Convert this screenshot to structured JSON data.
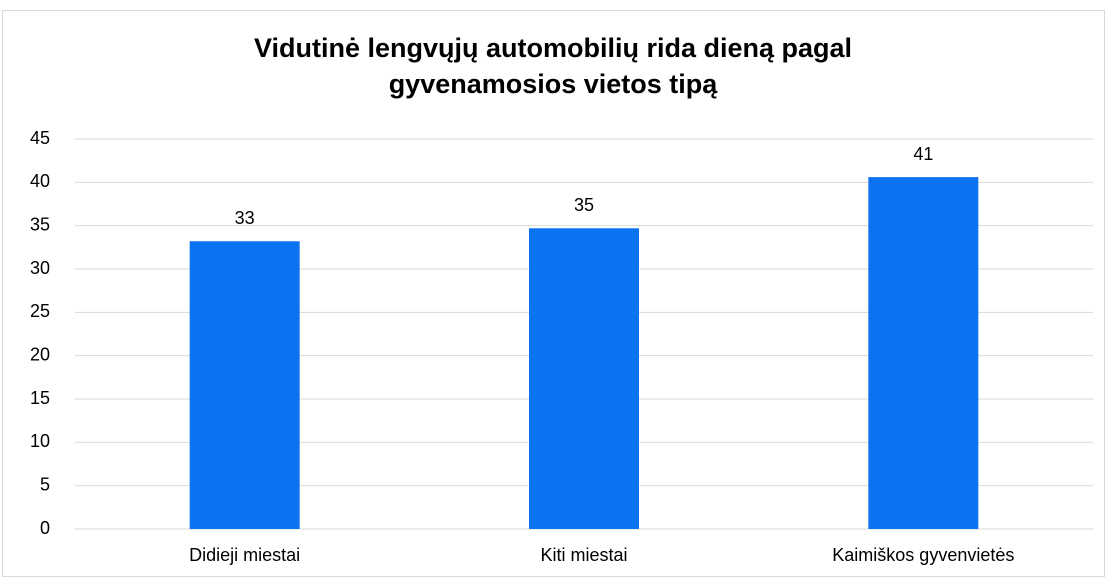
{
  "chart_data": {
    "type": "bar",
    "title": "Vidutinė lengvųjų automobilių rida dieną pagal gyvenamosios vietos tipą",
    "categories": [
      "Didieji miestai",
      "Kiti miestai",
      "Kaimiškos gyvenvietės"
    ],
    "values": [
      33.2,
      34.7,
      40.6
    ],
    "value_labels": [
      "33",
      "35",
      "41"
    ],
    "color": "#0b72f0",
    "ylim": [
      0,
      45
    ],
    "yticks": [
      0,
      5,
      10,
      15,
      20,
      25,
      30,
      35,
      40,
      45
    ],
    "grid": true
  }
}
